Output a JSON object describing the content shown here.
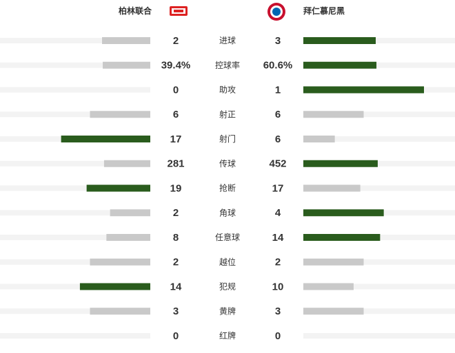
{
  "chart_data": {
    "type": "bar",
    "categories": [
      "进球",
      "控球率",
      "助攻",
      "射正",
      "射门",
      "传球",
      "抢断",
      "角球",
      "任意球",
      "越位",
      "犯规",
      "黄牌",
      "红牌"
    ],
    "series": [
      {
        "name": "柏林联合",
        "values": [
          2,
          39.4,
          0,
          6,
          17,
          281,
          19,
          2,
          8,
          2,
          14,
          3,
          0
        ],
        "value_labels": [
          "2",
          "39.4%",
          "0",
          "6",
          "17",
          "281",
          "19",
          "2",
          "8",
          "2",
          "14",
          "3",
          "0"
        ]
      },
      {
        "name": "拜仁慕尼黑",
        "values": [
          3,
          60.6,
          1,
          6,
          6,
          452,
          17,
          4,
          14,
          2,
          10,
          3,
          0
        ],
        "value_labels": [
          "3",
          "60.6%",
          "1",
          "6",
          "6",
          "452",
          "17",
          "4",
          "14",
          "2",
          "10",
          "3",
          "0"
        ]
      }
    ],
    "lead_color": "#2a5c1d",
    "color": "#c9c9c9",
    "track_color": "#f3f3f3"
  }
}
